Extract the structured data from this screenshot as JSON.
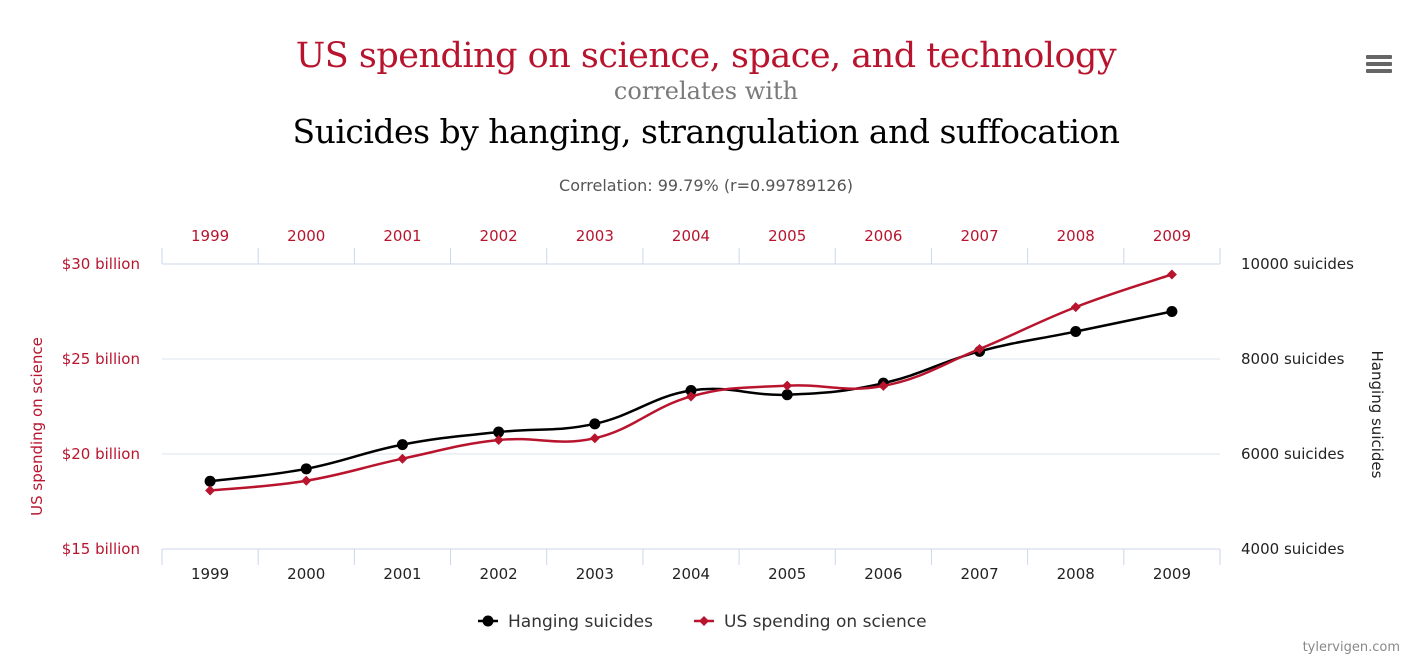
{
  "header": {
    "title_primary": "US spending on science, space, and technology",
    "separator": "correlates with",
    "title_secondary": "Suicides by hanging, strangulation and suffocation",
    "correlation_text": "Correlation: 99.79% (r=0.99789126)"
  },
  "credit": "tylervigen.com",
  "menu_icon": "hamburger-menu-icon",
  "colors": {
    "spending": "#b8142d",
    "suicides": "#000000",
    "separator": "#7a7a7a",
    "grid": "#ccd6eb"
  },
  "chart_data": {
    "type": "line",
    "categories": [
      "1999",
      "2000",
      "2001",
      "2002",
      "2003",
      "2004",
      "2005",
      "2006",
      "2007",
      "2008",
      "2009"
    ],
    "series": [
      {
        "name": "Hanging suicides",
        "axis": "right",
        "marker": "circle",
        "values": [
          5427,
          5688,
          6198,
          6462,
          6635,
          7336,
          7248,
          7491,
          8161,
          8578,
          9000
        ]
      },
      {
        "name": "US spending on science",
        "axis": "left",
        "marker": "diamond",
        "values": [
          18079,
          18594,
          19753,
          20734,
          20831,
          23029,
          23597,
          23584,
          25525,
          27731,
          29449
        ]
      }
    ],
    "left_axis": {
      "title": "US spending on science",
      "range": [
        15000,
        30000
      ],
      "ticks": [
        {
          "value": 15000,
          "label": "$15 billion"
        },
        {
          "value": 20000,
          "label": "$20 billion"
        },
        {
          "value": 25000,
          "label": "$25 billion"
        },
        {
          "value": 30000,
          "label": "$30 billion"
        }
      ]
    },
    "right_axis": {
      "title": "Hanging suicides",
      "range": [
        4000,
        10000
      ],
      "ticks": [
        {
          "value": 4000,
          "label": "4000 suicides"
        },
        {
          "value": 6000,
          "label": "6000 suicides"
        },
        {
          "value": 8000,
          "label": "8000 suicides"
        },
        {
          "value": 10000,
          "label": "10000 suicides"
        }
      ]
    },
    "grid": true,
    "legend_position": "bottom-center",
    "x_axes": [
      "top",
      "bottom"
    ]
  }
}
